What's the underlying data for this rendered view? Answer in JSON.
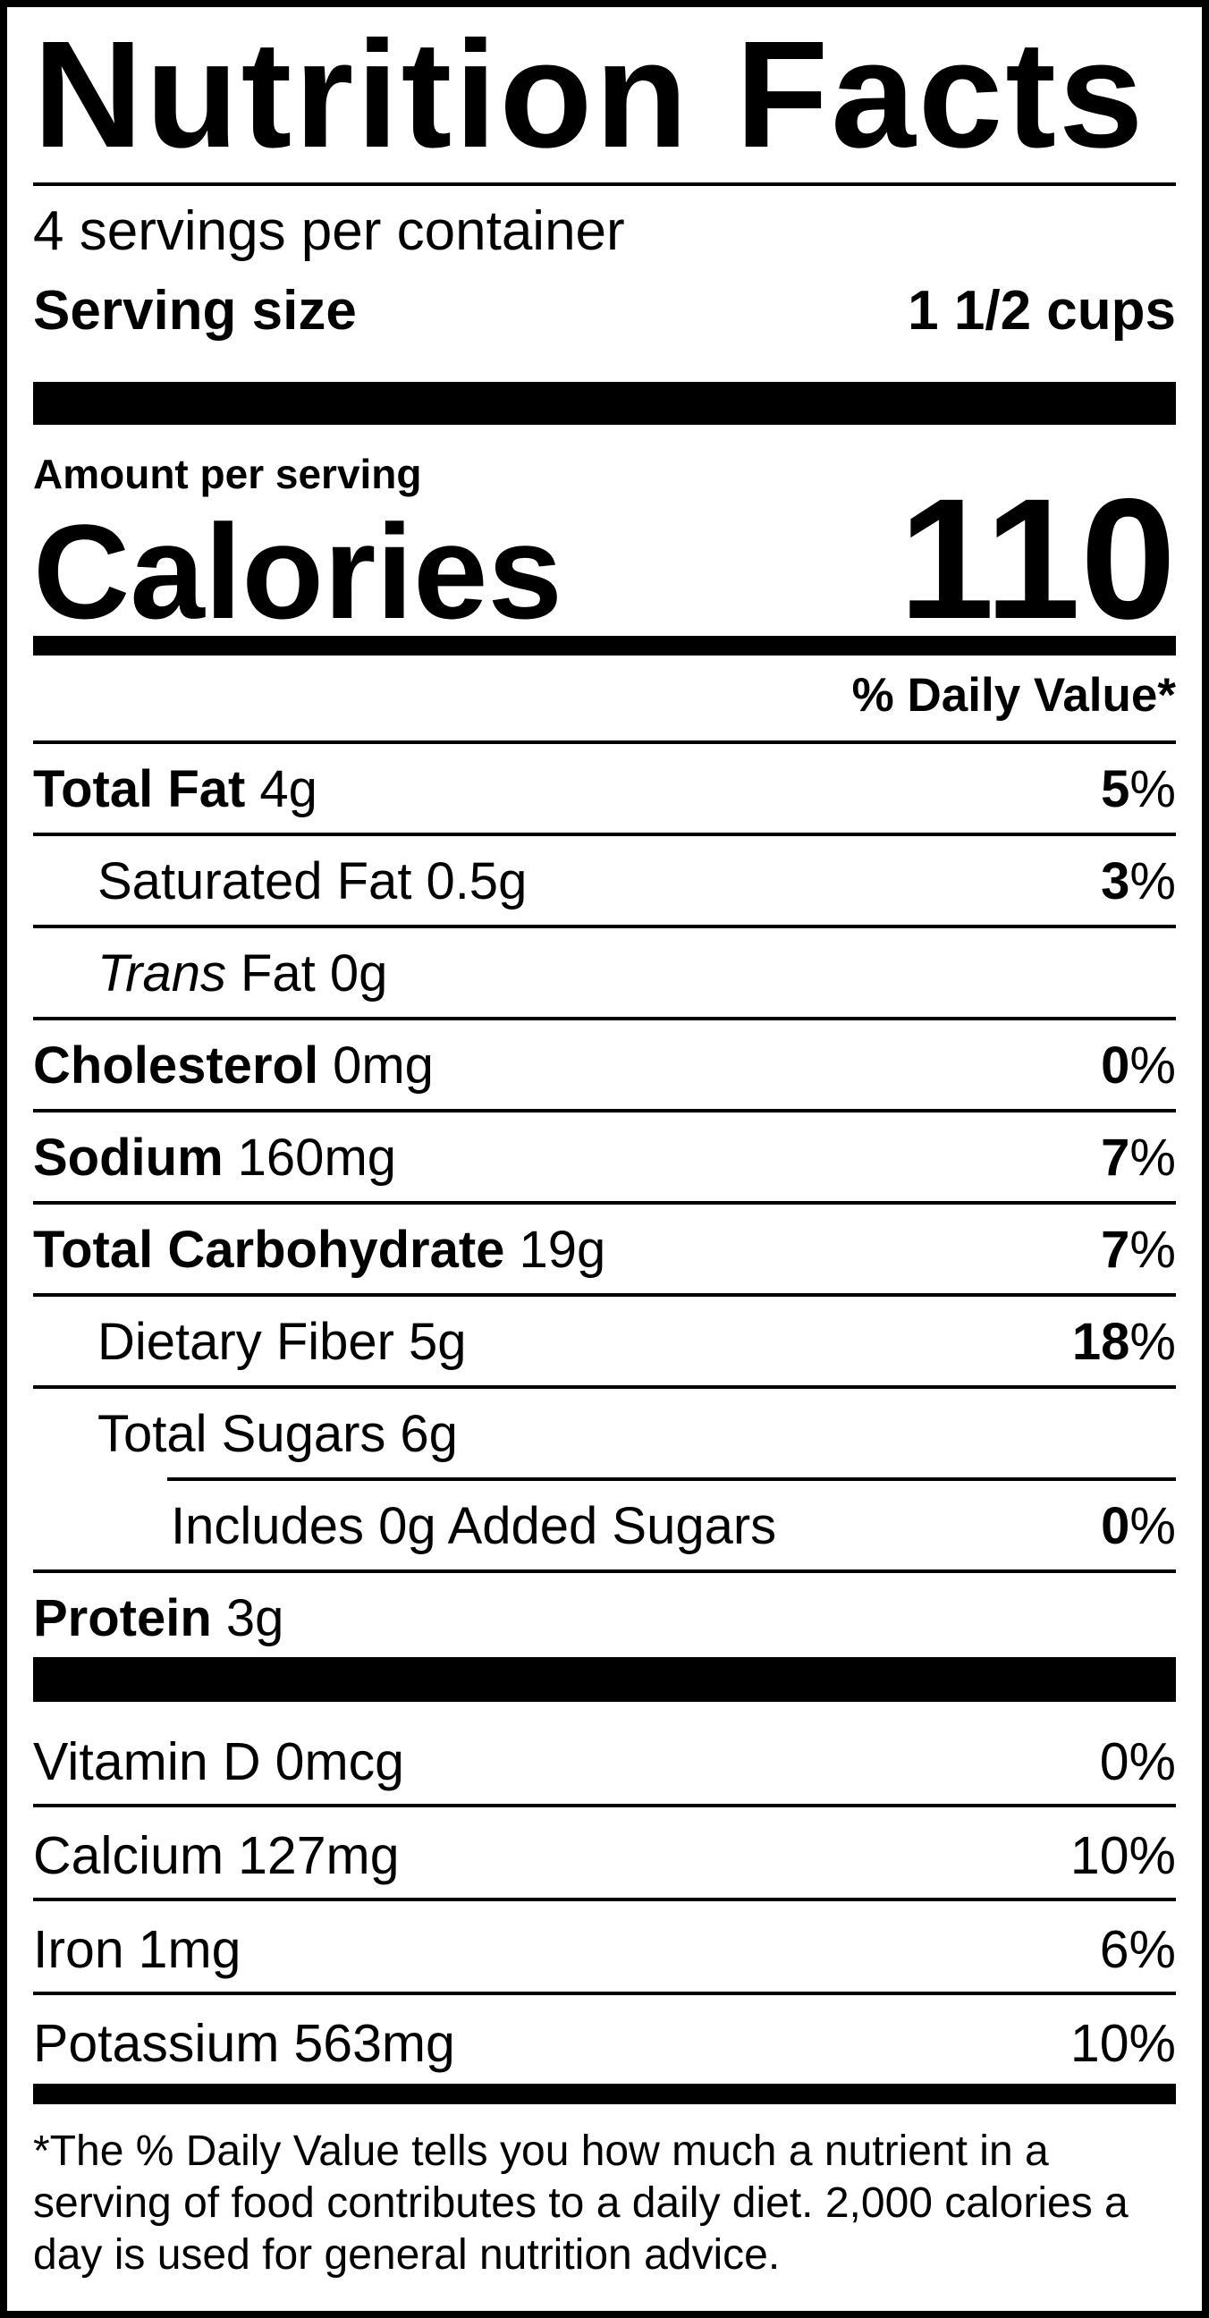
{
  "nutrition_label": {
    "title": "Nutrition Facts",
    "servings_per_container": "4 servings per container",
    "serving_size": {
      "label": "Serving size",
      "value": "1 1/2 cups"
    },
    "amount_per_serving": "Amount per serving",
    "calories": {
      "label": "Calories",
      "value": "110"
    },
    "daily_value_header": "% Daily Value*",
    "nutrients": [
      {
        "name": "Total Fat",
        "amount": "4g",
        "dv": "5",
        "pct": "%"
      },
      {
        "name": "Saturated Fat",
        "amount": "0.5g",
        "dv": "3",
        "pct": "%"
      },
      {
        "name": "Trans",
        "amount": "Fat 0g"
      },
      {
        "name": "Cholesterol",
        "amount": "0mg",
        "dv": "0",
        "pct": "%"
      },
      {
        "name": "Sodium",
        "amount": "160mg",
        "dv": "7",
        "pct": "%"
      },
      {
        "name": "Total Carbohydrate",
        "amount": "19g",
        "dv": "7",
        "pct": "%"
      },
      {
        "name": "Dietary Fiber",
        "amount": "5g",
        "dv": "18",
        "pct": "%"
      },
      {
        "name": "Total Sugars",
        "amount": "6g"
      },
      {
        "name": "Includes 0g Added Sugars",
        "dv": "0",
        "pct": "%"
      },
      {
        "name": "Protein",
        "amount": "3g"
      }
    ],
    "vitamins": [
      {
        "name": "Vitamin D",
        "amount": "0mcg",
        "dv": "0",
        "pct": "%"
      },
      {
        "name": "Calcium",
        "amount": "127mg",
        "dv": "10",
        "pct": "%"
      },
      {
        "name": "Iron",
        "amount": "1mg",
        "dv": "6",
        "pct": "%"
      },
      {
        "name": "Potassium",
        "amount": "563mg",
        "dv": "10",
        "pct": "%"
      }
    ],
    "footnote": "*The % Daily Value tells you how much a nutrient in a serving of food contributes to a daily diet. 2,000 calories a day is used for general nutrition advice.",
    "colors": {
      "ink": "#000000",
      "paper": "#ffffff"
    }
  }
}
